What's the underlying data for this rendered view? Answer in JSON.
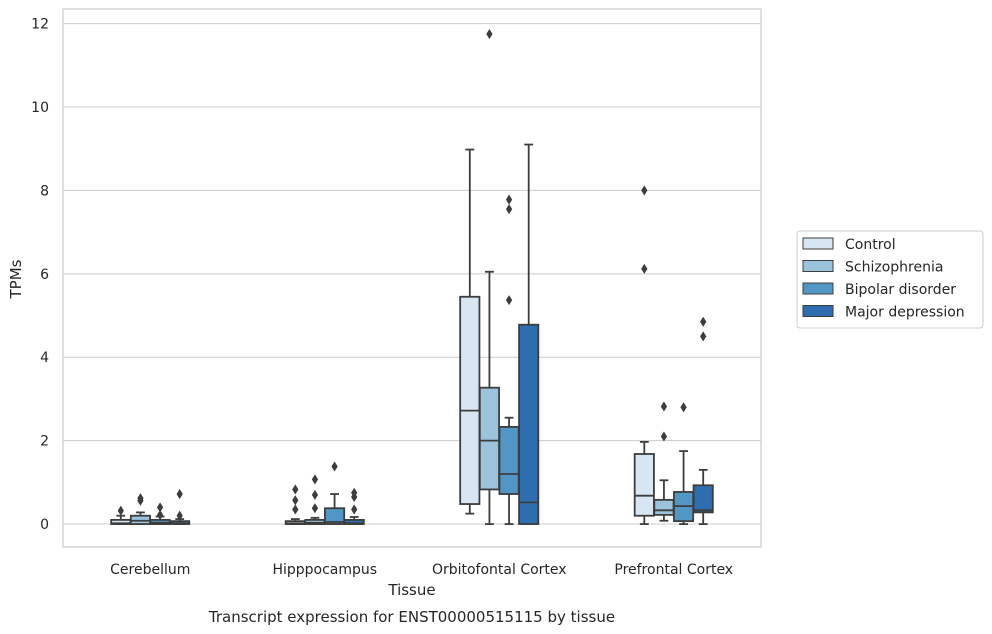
{
  "chart_data": {
    "type": "box",
    "title": "Transcript expression for ENST00000515115 by tissue",
    "xlabel": "Tissue",
    "ylabel": "TPMs",
    "ylim": [
      -0.55,
      12.35
    ],
    "yticks": [
      0,
      2,
      4,
      6,
      8,
      10,
      12
    ],
    "grid": true,
    "legend_position": "right",
    "categories": [
      "Cerebellum",
      "Hipppocampus",
      "Orbitofontal Cortex",
      "Prefrontal Cortex"
    ],
    "series": [
      {
        "name": "Control",
        "color": "#d8e6f3",
        "boxes": [
          {
            "q1": 0.0,
            "median": 0.02,
            "q3": 0.1,
            "whisker_low": 0.0,
            "whisker_high": 0.2,
            "outliers": [
              0.32
            ]
          },
          {
            "q1": 0.0,
            "median": 0.02,
            "q3": 0.07,
            "whisker_low": 0.0,
            "whisker_high": 0.12,
            "outliers": [
              0.35,
              0.57,
              0.83
            ]
          },
          {
            "q1": 0.48,
            "median": 2.72,
            "q3": 5.45,
            "whisker_low": 0.25,
            "whisker_high": 8.98,
            "outliers": []
          },
          {
            "q1": 0.2,
            "median": 0.68,
            "q3": 1.68,
            "whisker_low": 0.0,
            "whisker_high": 1.97,
            "outliers": [
              6.12,
              8.0
            ]
          }
        ]
      },
      {
        "name": "Schizophrenia",
        "color": "#9cc3dc",
        "boxes": [
          {
            "q1": 0.0,
            "median": 0.08,
            "q3": 0.2,
            "whisker_low": 0.0,
            "whisker_high": 0.28,
            "outliers": [
              0.56,
              0.62
            ]
          },
          {
            "q1": 0.0,
            "median": 0.03,
            "q3": 0.1,
            "whisker_low": 0.0,
            "whisker_high": 0.15,
            "outliers": [
              0.38,
              0.7,
              1.07
            ]
          },
          {
            "q1": 0.83,
            "median": 2.0,
            "q3": 3.27,
            "whisker_low": 0.0,
            "whisker_high": 6.05,
            "outliers": [
              11.75
            ]
          },
          {
            "q1": 0.22,
            "median": 0.33,
            "q3": 0.58,
            "whisker_low": 0.08,
            "whisker_high": 1.05,
            "outliers": [
              2.1,
              2.82
            ]
          }
        ]
      },
      {
        "name": "Bipolar disorder",
        "color": "#5296c6",
        "boxes": [
          {
            "q1": 0.0,
            "median": 0.03,
            "q3": 0.1,
            "whisker_low": 0.0,
            "whisker_high": 0.18,
            "outliers": [
              0.22,
              0.4
            ]
          },
          {
            "q1": 0.0,
            "median": 0.05,
            "q3": 0.38,
            "whisker_low": 0.0,
            "whisker_high": 0.72,
            "outliers": [
              1.38
            ]
          },
          {
            "q1": 0.72,
            "median": 1.2,
            "q3": 2.33,
            "whisker_low": 0.0,
            "whisker_high": 2.55,
            "outliers": [
              5.37,
              7.55,
              7.78
            ]
          },
          {
            "q1": 0.07,
            "median": 0.43,
            "q3": 0.77,
            "whisker_low": 0.0,
            "whisker_high": 1.75,
            "outliers": [
              2.8
            ]
          }
        ]
      },
      {
        "name": "Major depression",
        "color": "#2e6daf",
        "boxes": [
          {
            "q1": 0.0,
            "median": 0.02,
            "q3": 0.07,
            "whisker_low": 0.0,
            "whisker_high": 0.12,
            "outliers": [
              0.2,
              0.72
            ]
          },
          {
            "q1": 0.0,
            "median": 0.02,
            "q3": 0.1,
            "whisker_low": 0.0,
            "whisker_high": 0.17,
            "outliers": [
              0.35,
              0.65,
              0.75
            ]
          },
          {
            "q1": 0.0,
            "median": 0.52,
            "q3": 4.78,
            "whisker_low": 0.0,
            "whisker_high": 9.1,
            "outliers": []
          },
          {
            "q1": 0.28,
            "median": 0.33,
            "q3": 0.93,
            "whisker_low": 0.0,
            "whisker_high": 1.3,
            "outliers": [
              4.5,
              4.85
            ]
          }
        ]
      }
    ]
  }
}
